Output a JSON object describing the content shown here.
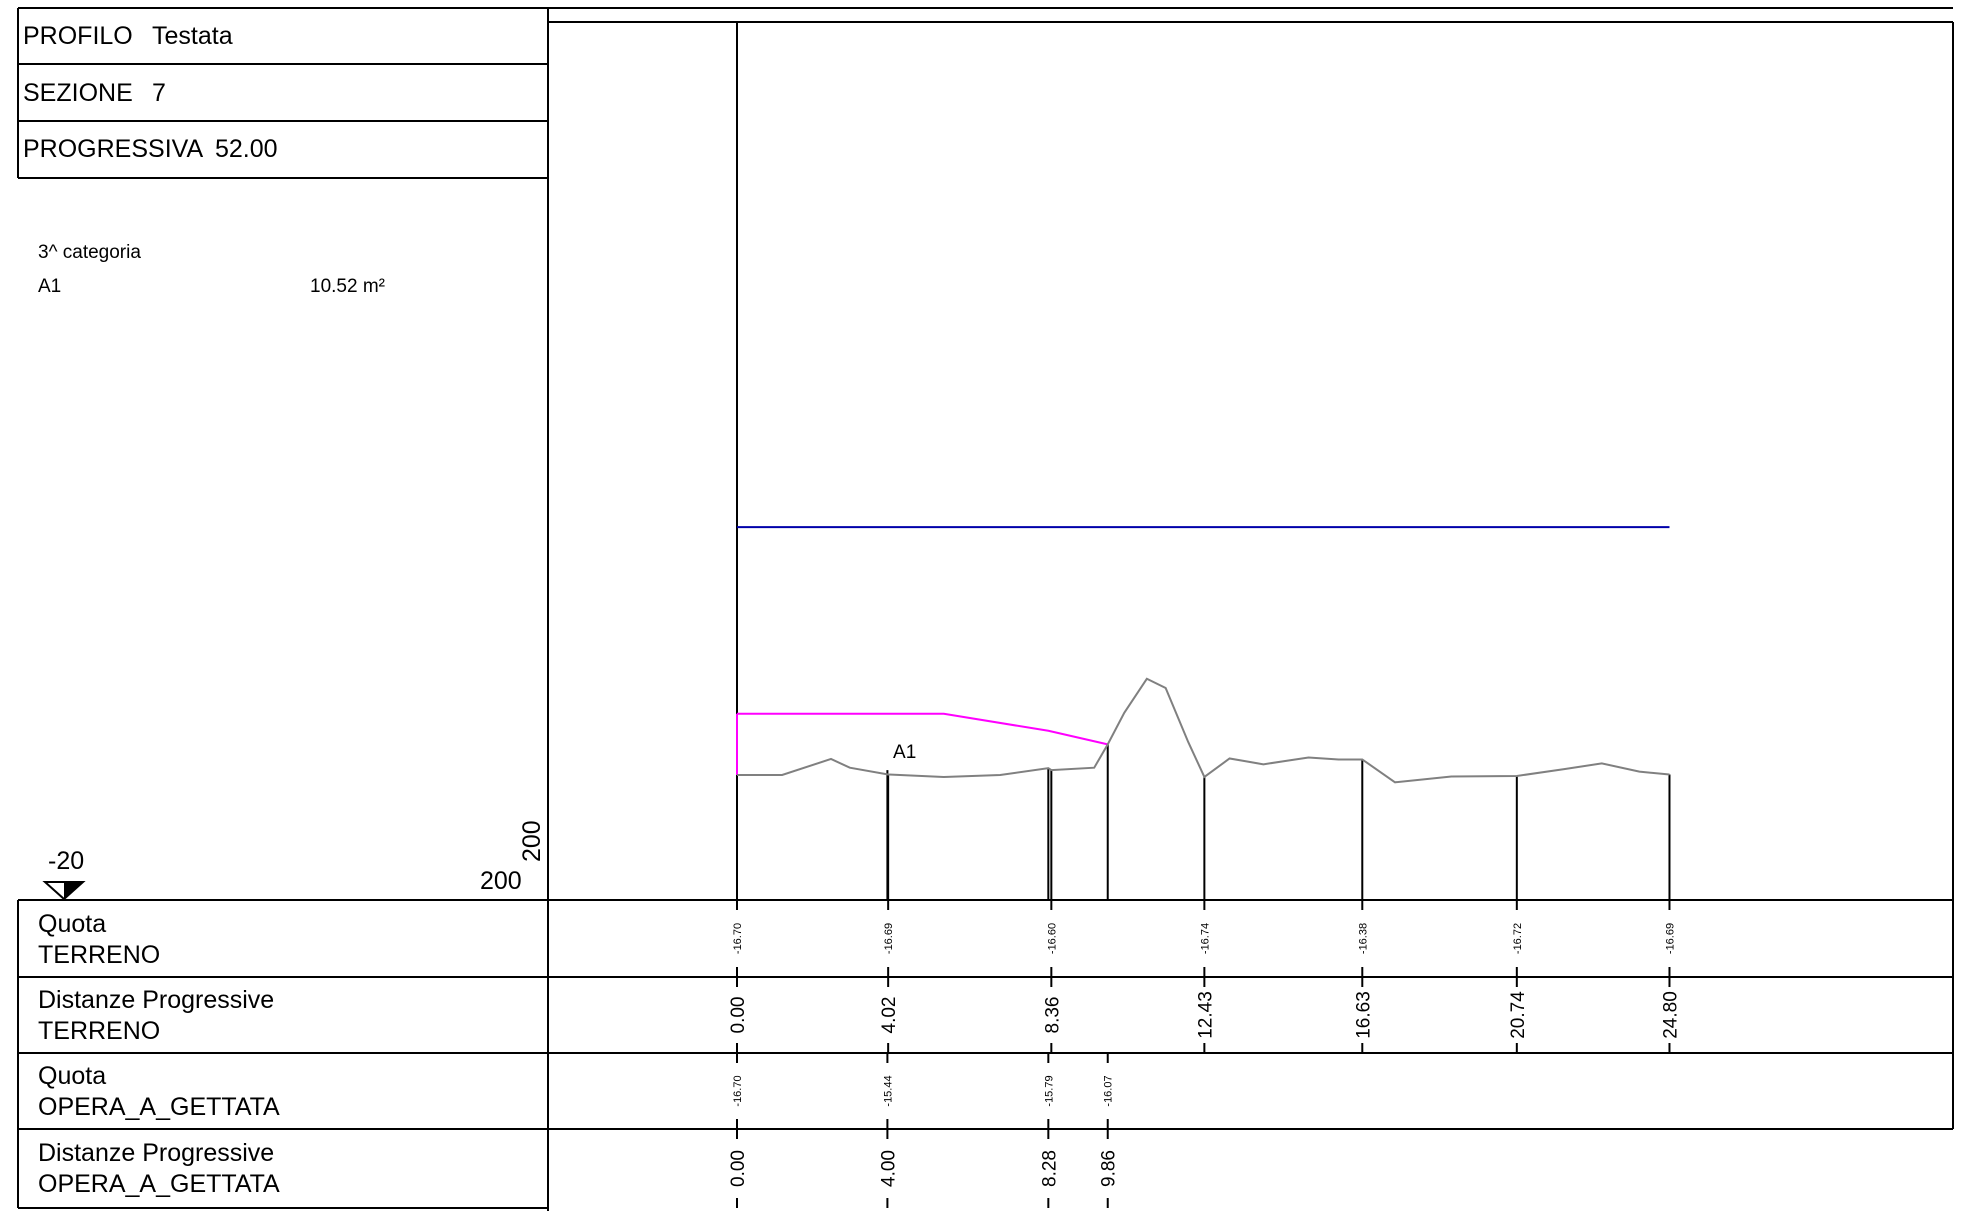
{
  "header": {
    "profilo_label": "PROFILO",
    "profilo_value": "Testata",
    "sezione_label": "SEZIONE",
    "sezione_value": "7",
    "progressiva_label": "PROGRESSIVA",
    "progressiva_value": "52.00"
  },
  "legend": {
    "category": "3^ categoria",
    "area_name": "A1",
    "area_value": "10.52 m²"
  },
  "scale": {
    "datum": "-20",
    "horizontal_scale": "200",
    "vertical_scale": "200"
  },
  "chart_data": {
    "type": "line",
    "area_label": "A1",
    "colors": {
      "terreno": "#808080",
      "opera_a_gettata": "#ff00ff",
      "water_level": "#0000aa"
    },
    "series": [
      {
        "name": "TERRENO",
        "x": [
          0.0,
          1.2,
          2.5,
          3.0,
          4.02,
          5.5,
          7.0,
          8.28,
          8.36,
          9.5,
          9.86,
          10.3,
          10.9,
          11.4,
          12.0,
          12.43,
          13.1,
          14.0,
          15.2,
          16.0,
          16.63,
          17.5,
          19.0,
          20.74,
          22.0,
          23.0,
          24.0,
          24.8
        ],
        "y": [
          -16.7,
          -16.7,
          -16.37,
          -16.55,
          -16.69,
          -16.74,
          -16.7,
          -16.56,
          -16.6,
          -16.55,
          -16.07,
          -15.42,
          -14.72,
          -14.91,
          -16.02,
          -16.74,
          -16.36,
          -16.48,
          -16.34,
          -16.38,
          -16.38,
          -16.85,
          -16.73,
          -16.72,
          -16.58,
          -16.46,
          -16.63,
          -16.69
        ]
      },
      {
        "name": "OPERA_A_GETTATA",
        "x": [
          0.0,
          4.0,
          5.5,
          8.28,
          9.86
        ],
        "y": [
          -16.7,
          -15.44,
          -15.44,
          -15.79,
          -16.07
        ]
      }
    ],
    "water_level": {
      "x": [
        0.0,
        24.8
      ],
      "y": -11.6
    },
    "rows": [
      {
        "label1": "Quota",
        "label2": "TERRENO",
        "size": "sm",
        "values": [
          {
            "x": 0.0,
            "text": "-16.70"
          },
          {
            "x": 4.02,
            "text": "-16.69"
          },
          {
            "x": 8.36,
            "text": "-16.60"
          },
          {
            "x": 12.43,
            "text": "-16.74"
          },
          {
            "x": 16.63,
            "text": "-16.38"
          },
          {
            "x": 20.74,
            "text": "-16.72"
          },
          {
            "x": 24.8,
            "text": "-16.69"
          }
        ]
      },
      {
        "label1": "Distanze Progressive",
        "label2": "TERRENO",
        "size": "lg",
        "values": [
          {
            "x": 0.0,
            "text": "0.00"
          },
          {
            "x": 4.02,
            "text": "4.02"
          },
          {
            "x": 8.36,
            "text": "8.36"
          },
          {
            "x": 12.43,
            "text": "12.43"
          },
          {
            "x": 16.63,
            "text": "16.63"
          },
          {
            "x": 20.74,
            "text": "20.74"
          },
          {
            "x": 24.8,
            "text": "24.80"
          }
        ]
      },
      {
        "label1": "Quota",
        "label2": "OPERA_A_GETTATA",
        "size": "sm",
        "values": [
          {
            "x": 0.0,
            "text": "-16.70"
          },
          {
            "x": 4.0,
            "text": "-15.44"
          },
          {
            "x": 8.28,
            "text": "-15.79"
          },
          {
            "x": 9.86,
            "text": "-16.07"
          }
        ]
      },
      {
        "label1": "Distanze Progressive",
        "label2": "OPERA_A_GETTATA",
        "size": "lg",
        "values": [
          {
            "x": 0.0,
            "text": "0.00"
          },
          {
            "x": 4.0,
            "text": "4.00"
          },
          {
            "x": 8.28,
            "text": "8.28"
          },
          {
            "x": 9.86,
            "text": "9.86"
          }
        ]
      }
    ]
  }
}
